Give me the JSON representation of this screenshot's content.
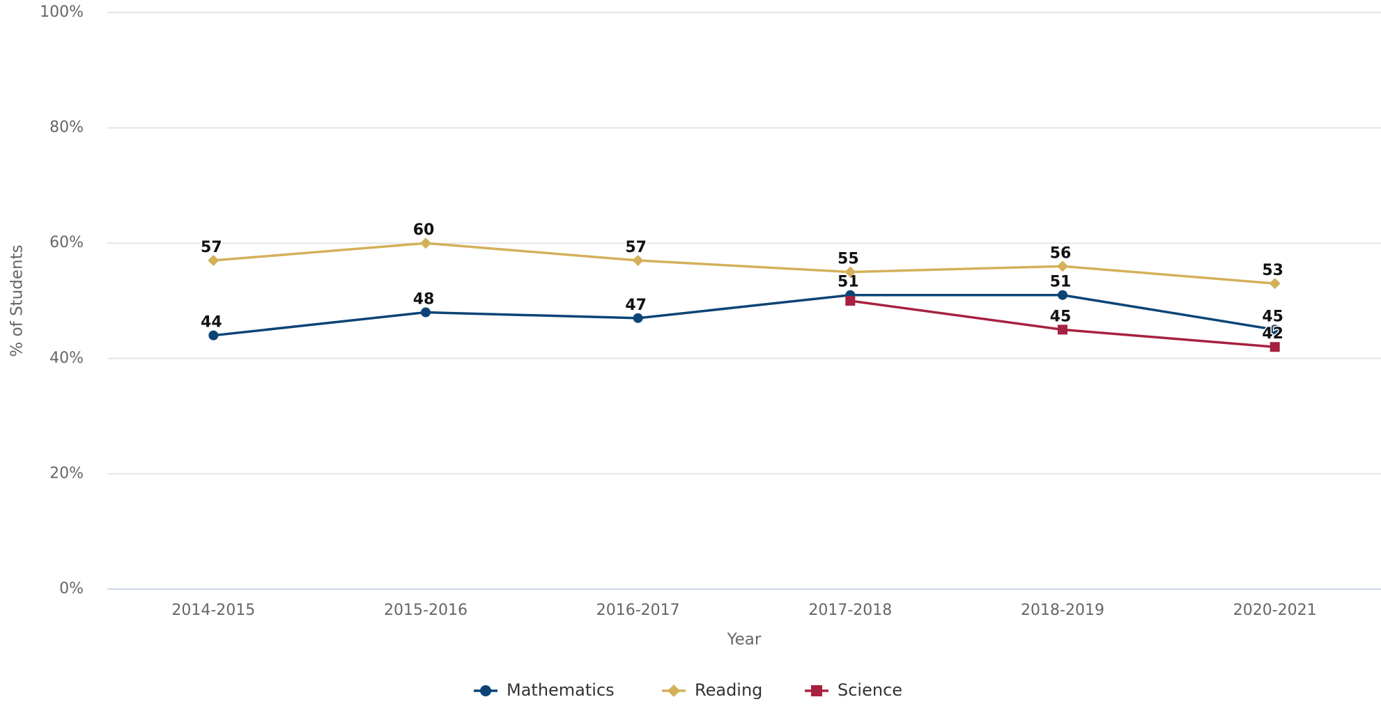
{
  "chart_data": {
    "type": "line",
    "x_label": "Year",
    "y_label": "% of Students",
    "categories": [
      "2014-2015",
      "2015-2016",
      "2016-2017",
      "2017-2018",
      "2018-2019",
      "2020-2021"
    ],
    "series": [
      {
        "name": "Mathematics",
        "color": "#0b4475",
        "marker": "circle",
        "values": [
          44,
          48,
          47,
          51,
          51,
          45
        ]
      },
      {
        "name": "Reading",
        "color": "#d4b05a",
        "marker": "diamond",
        "values": [
          57,
          60,
          57,
          55,
          56,
          53
        ]
      },
      {
        "name": "Science",
        "color": "#a6213f",
        "marker": "square",
        "values": [
          null,
          null,
          null,
          50,
          45,
          42
        ],
        "value_labels": [
          null,
          null,
          null,
          null,
          "45",
          "42"
        ]
      }
    ],
    "ylim": [
      0,
      100
    ],
    "yticks": [
      {
        "value": 0,
        "label": "0%"
      },
      {
        "value": 20,
        "label": "20%"
      },
      {
        "value": 40,
        "label": "40%"
      },
      {
        "value": 60,
        "label": "60%"
      },
      {
        "value": 80,
        "label": "80%"
      },
      {
        "value": 100,
        "label": "100%"
      }
    ],
    "grid": true,
    "legend": "bottom"
  }
}
